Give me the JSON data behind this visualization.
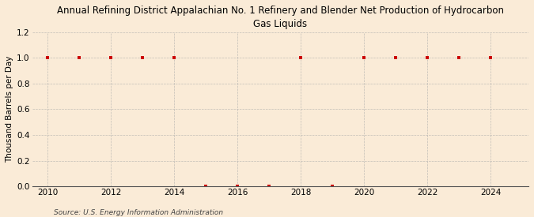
{
  "title": "Annual Refining District Appalachian No. 1 Refinery and Blender Net Production of Hydrocarbon\nGas Liquids",
  "ylabel": "Thousand Barrels per Day",
  "source": "Source: U.S. Energy Information Administration",
  "background_color": "#faebd7",
  "x_data": [
    2010,
    2011,
    2012,
    2013,
    2014,
    2015,
    2016,
    2017,
    2018,
    2019,
    2020,
    2021,
    2022,
    2023,
    2024
  ],
  "y_data": [
    1.0,
    1.0,
    1.0,
    1.0,
    1.0,
    0.0,
    0.0,
    0.0,
    1.0,
    0.0,
    1.0,
    1.0,
    1.0,
    1.0,
    1.0
  ],
  "marker_color": "#cc0000",
  "marker_size": 3.5,
  "ylim": [
    0.0,
    1.2
  ],
  "yticks": [
    0.0,
    0.2,
    0.4,
    0.6,
    0.8,
    1.0,
    1.2
  ],
  "xlim": [
    2009.5,
    2025.2
  ],
  "xticks": [
    2010,
    2012,
    2014,
    2016,
    2018,
    2020,
    2022,
    2024
  ],
  "grid_color": "#aaaaaa",
  "title_fontsize": 8.5,
  "ylabel_fontsize": 7.5,
  "tick_fontsize": 7.5,
  "source_fontsize": 6.5
}
